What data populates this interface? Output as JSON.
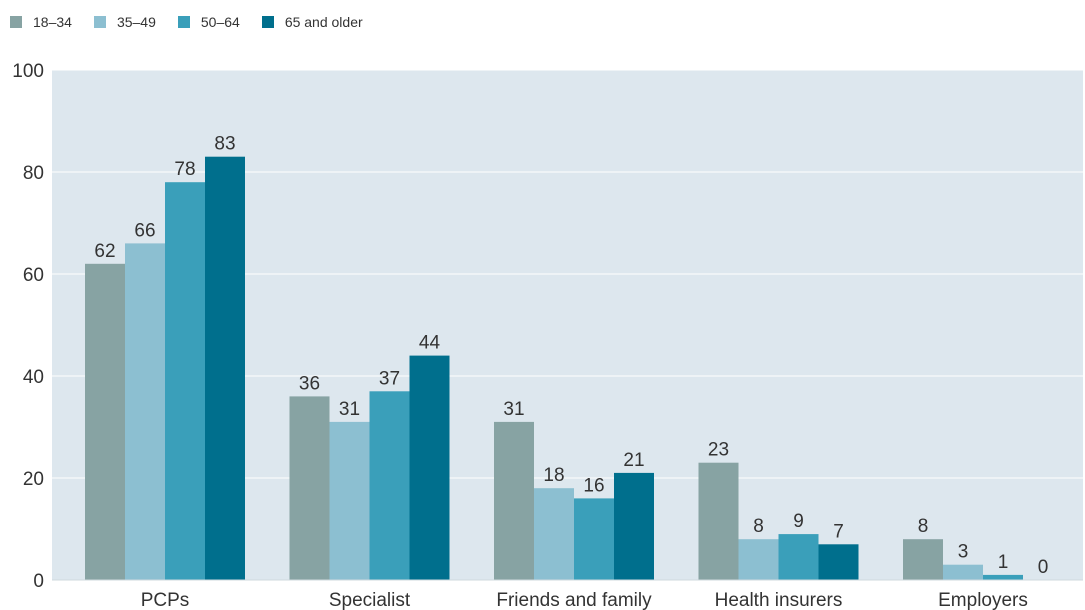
{
  "chart_data": {
    "type": "bar",
    "categories": [
      "PCPs",
      "Specialist",
      "Friends and family",
      "Health insurers",
      "Employers"
    ],
    "series": [
      {
        "name": "18–34",
        "color": "#87a3a3",
        "values": [
          62,
          36,
          31,
          23,
          8
        ]
      },
      {
        "name": "35–49",
        "color": "#8cbfd1",
        "values": [
          66,
          31,
          18,
          8,
          3
        ]
      },
      {
        "name": "50–64",
        "color": "#3a9fba",
        "values": [
          78,
          37,
          16,
          9,
          1
        ]
      },
      {
        "name": "65 and older",
        "color": "#006f8d",
        "values": [
          83,
          44,
          21,
          7,
          0
        ]
      }
    ],
    "ylim": [
      0,
      100
    ],
    "yticks": [
      0,
      20,
      40,
      60,
      80,
      100
    ],
    "grid": true,
    "legend_position": "top-left",
    "plot_background": "#dde7ee"
  }
}
